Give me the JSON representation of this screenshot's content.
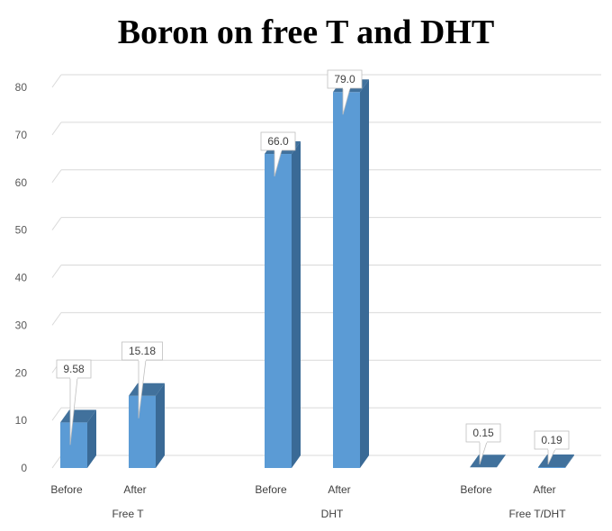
{
  "chart_data": {
    "type": "bar",
    "title": "Boron on free T and DHT",
    "xlabel": "",
    "ylabel": "",
    "ylim": [
      0,
      80
    ],
    "yticks": [
      0,
      10,
      20,
      30,
      40,
      50,
      60,
      70,
      80
    ],
    "grid": true,
    "legend": null,
    "style": "3d-column",
    "groups": [
      "Free T",
      "DHT",
      "Free T/DHT"
    ],
    "categories": [
      "Before",
      "After",
      "Before",
      "After",
      "Before",
      "After"
    ],
    "values": [
      9.58,
      15.18,
      66.0,
      79.0,
      0.15,
      0.19
    ],
    "data_labels": [
      "9.58",
      "15.18",
      "66.0",
      "79.0",
      "0.15",
      "0.19"
    ],
    "color": "#5B9BD5"
  }
}
